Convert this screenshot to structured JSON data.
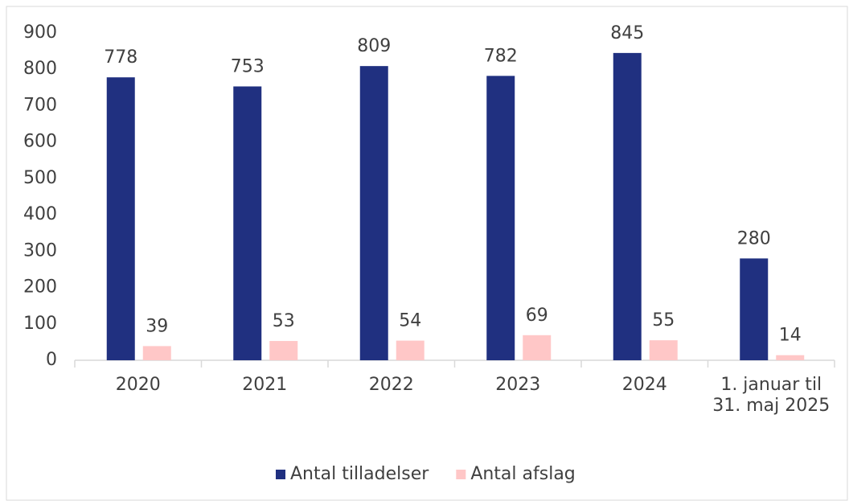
{
  "chart_data": {
    "type": "bar",
    "categories": [
      "2020",
      "2021",
      "2022",
      "2023",
      "2024",
      "1. januar til 31. maj 2025"
    ],
    "series": [
      {
        "name": "Antal tilladelser",
        "color": "#203080",
        "values": [
          778,
          753,
          809,
          782,
          845,
          280
        ]
      },
      {
        "name": "Antal afslag",
        "color": "#ffc7c7",
        "values": [
          39,
          53,
          54,
          69,
          55,
          14
        ]
      }
    ],
    "ylim": [
      0,
      900
    ],
    "yticks": [
      0,
      100,
      200,
      300,
      400,
      500,
      600,
      700,
      800,
      900
    ],
    "grid": false,
    "legend": "bottom"
  }
}
